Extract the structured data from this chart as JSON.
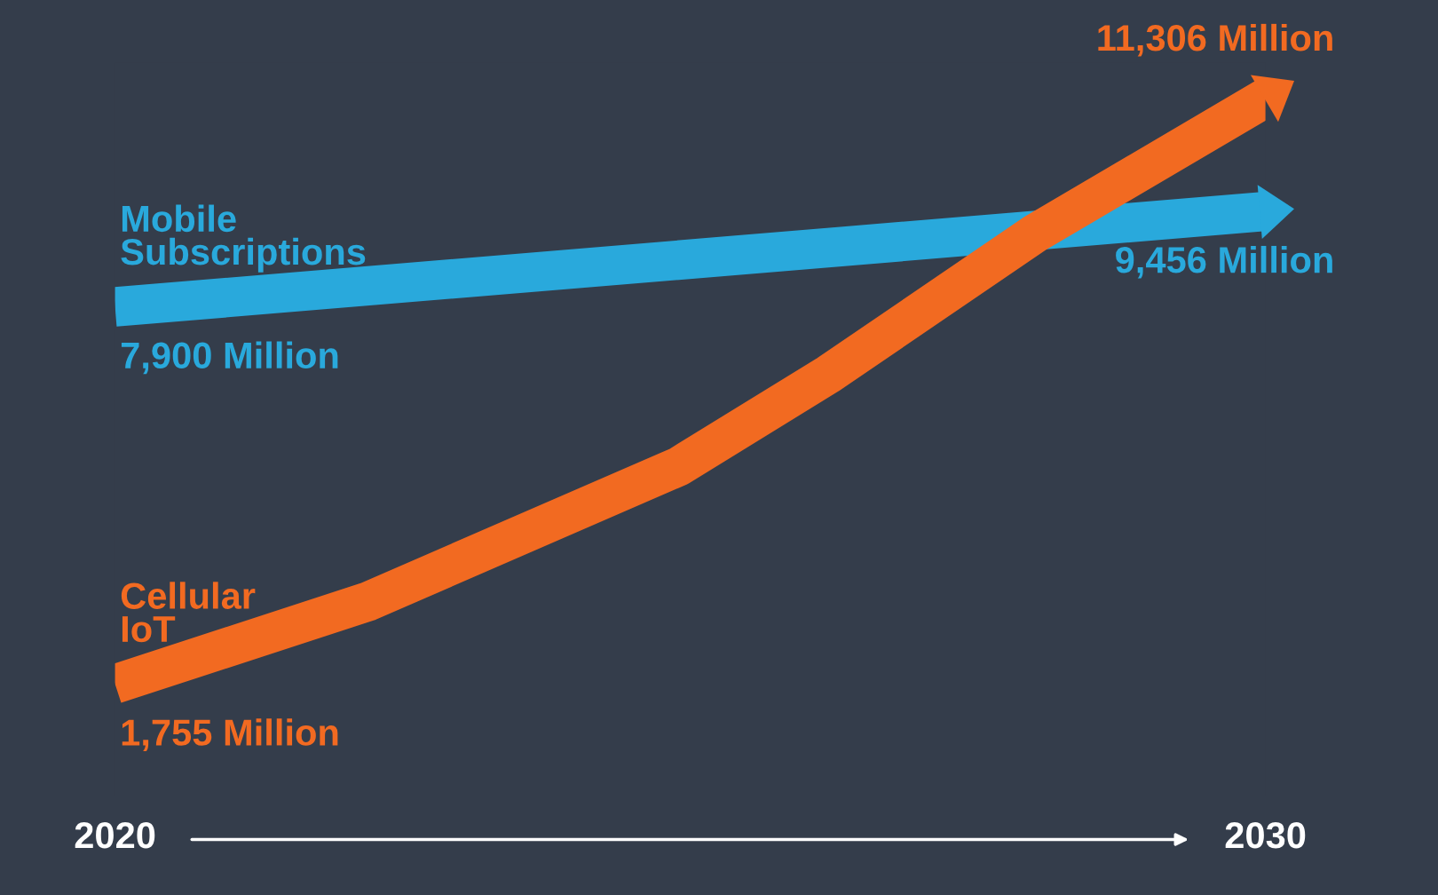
{
  "chart_data": {
    "type": "line",
    "xlim": [
      2020,
      2030
    ],
    "xticks": [
      2020,
      2030
    ],
    "grid": false,
    "legend": false,
    "line_style": "solid",
    "series": [
      {
        "name": "Mobile Subscriptions",
        "color": "#29a9dc",
        "x": [
          2020,
          2030
        ],
        "values": [
          7900,
          9456
        ],
        "value_labels": [
          "7,900 Million",
          "9,456 Million"
        ]
      },
      {
        "name": "Cellular IoT",
        "color": "#f26a21",
        "x": [
          2020,
          2022.2,
          2024.9,
          2026.2,
          2028,
          2030
        ],
        "values": [
          1755,
          3100,
          5300,
          6800,
          9100,
          11306
        ],
        "value_labels": [
          "1,755 Million",
          null,
          null,
          null,
          null,
          "11,306 Million"
        ]
      }
    ]
  }
}
